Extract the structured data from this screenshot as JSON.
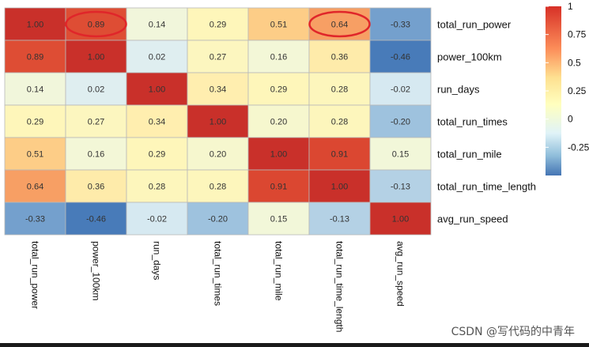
{
  "chart_data": {
    "type": "heatmap",
    "title": "",
    "variables": [
      "total_run_power",
      "power_100km",
      "run_days",
      "total_run_times",
      "total_run_mile",
      "total_run_time_length",
      "avg_run_speed"
    ],
    "matrix": [
      [
        "1.00",
        "0.89",
        "0.14",
        "0.29",
        "0.51",
        "0.64",
        "-0.33"
      ],
      [
        "0.89",
        "1.00",
        "0.02",
        "0.27",
        "0.16",
        "0.36",
        "-0.46"
      ],
      [
        "0.14",
        "0.02",
        "1.00",
        "0.34",
        "0.29",
        "0.28",
        "-0.02"
      ],
      [
        "0.29",
        "0.27",
        "0.34",
        "1.00",
        "0.20",
        "0.28",
        "-0.20"
      ],
      [
        "0.51",
        "0.16",
        "0.29",
        "0.20",
        "1.00",
        "0.91",
        "0.15"
      ],
      [
        "0.64",
        "0.36",
        "0.28",
        "0.28",
        "0.91",
        "1.00",
        "-0.13"
      ],
      [
        "-0.33",
        "-0.46",
        "-0.02",
        "-0.20",
        "0.15",
        "-0.13",
        "1.00"
      ]
    ],
    "legend": {
      "ticks": [
        "1",
        "0.75",
        "0.5",
        "0.25",
        "0",
        "-0.25"
      ],
      "tick_values": [
        1,
        0.75,
        0.5,
        0.25,
        0,
        -0.25
      ],
      "range": [
        -0.5,
        1
      ]
    },
    "highlighted_cells": [
      [
        0,
        1
      ],
      [
        0,
        5
      ]
    ]
  },
  "watermark": "CSDN @写代码的中青年"
}
